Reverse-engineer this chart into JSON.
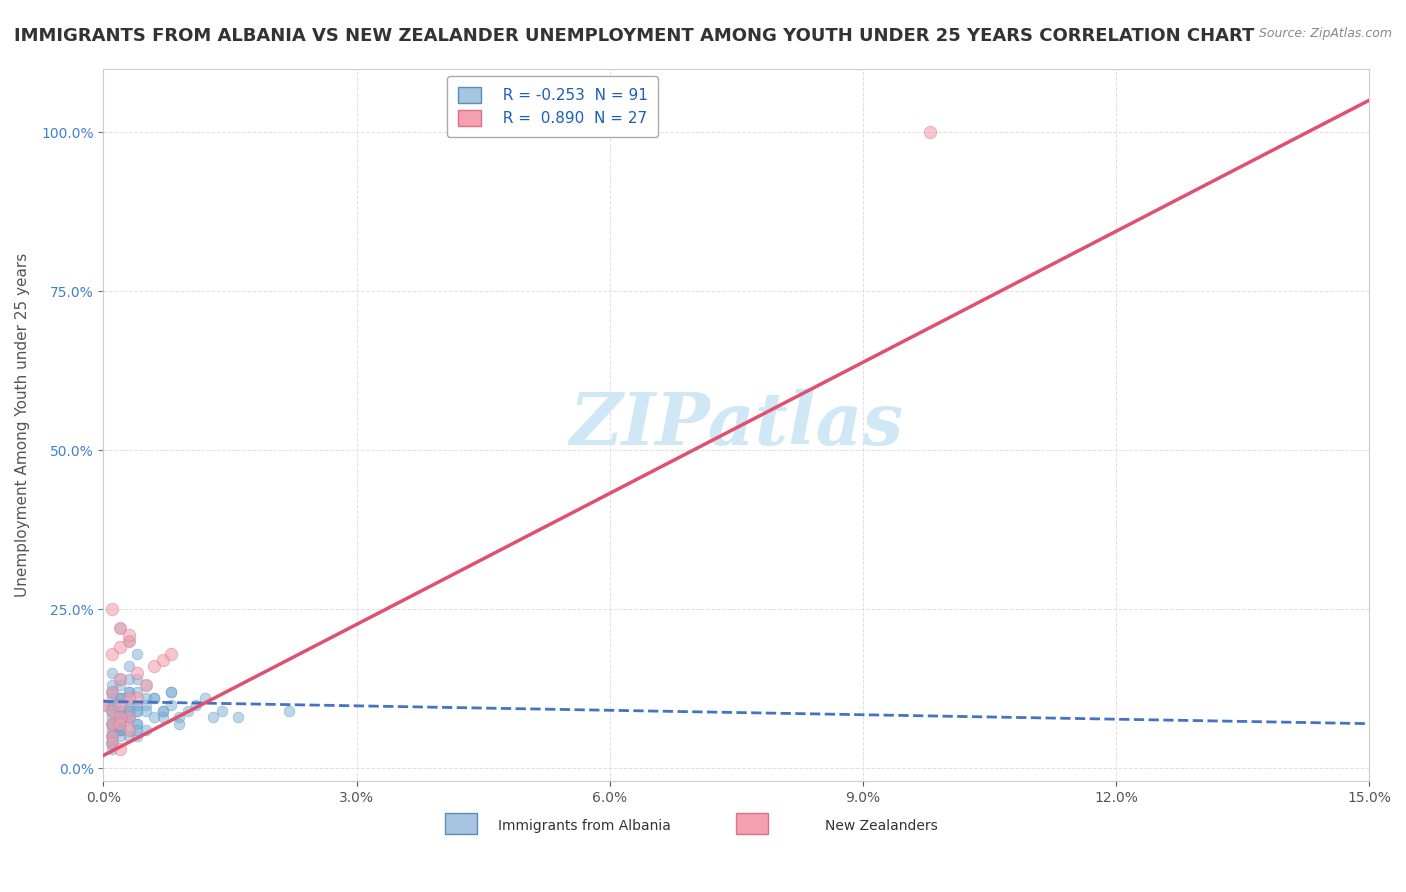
{
  "title": "IMMIGRANTS FROM ALBANIA VS NEW ZEALANDER UNEMPLOYMENT AMONG YOUTH UNDER 25 YEARS CORRELATION CHART",
  "source": "Source: ZipAtlas.com",
  "ylabel": "Unemployment Among Youth under 25 years",
  "xlim": [
    0.0,
    0.15
  ],
  "ylim": [
    -0.02,
    1.1
  ],
  "xticks": [
    0.0,
    0.03,
    0.06,
    0.09,
    0.12,
    0.15
  ],
  "xtick_labels": [
    "0.0%",
    "3.0%",
    "6.0%",
    "9.0%",
    "12.0%",
    "15.0%"
  ],
  "yticks": [
    0.0,
    0.25,
    0.5,
    0.75,
    1.0
  ],
  "ytick_labels": [
    "0.0%",
    "25.0%",
    "50.0%",
    "75.0%",
    "100.0%"
  ],
  "legend_entries": [
    {
      "label": "Immigrants from Albania",
      "R": "-0.253",
      "N": "91",
      "color": "#a8c4e0",
      "edge_color": "#5590bb"
    },
    {
      "label": "New Zealanders",
      "R": "0.890",
      "N": "27",
      "color": "#f4a0b0",
      "edge_color": "#e07088"
    }
  ],
  "blue_scatter_x": [
    0.0,
    0.001,
    0.002,
    0.003,
    0.004,
    0.005,
    0.006,
    0.007,
    0.008,
    0.009,
    0.001,
    0.002,
    0.003,
    0.004,
    0.005,
    0.001,
    0.002,
    0.003,
    0.001,
    0.002,
    0.003,
    0.004,
    0.005,
    0.006,
    0.007,
    0.008,
    0.009,
    0.01,
    0.011,
    0.012,
    0.013,
    0.014,
    0.002,
    0.003,
    0.004,
    0.003,
    0.004,
    0.005,
    0.001,
    0.002,
    0.001,
    0.002,
    0.003,
    0.004,
    0.002,
    0.003,
    0.001,
    0.002,
    0.003,
    0.001,
    0.001,
    0.002,
    0.003,
    0.004,
    0.005,
    0.006,
    0.007,
    0.008,
    0.016,
    0.022,
    0.001,
    0.002,
    0.001,
    0.002,
    0.003,
    0.002,
    0.001,
    0.003,
    0.004,
    0.002,
    0.001,
    0.002,
    0.001,
    0.002,
    0.003,
    0.002,
    0.003,
    0.004,
    0.001,
    0.002,
    0.001,
    0.002,
    0.003,
    0.004,
    0.001,
    0.002,
    0.001,
    0.002,
    0.001,
    0.001,
    0.001
  ],
  "blue_scatter_y": [
    0.1,
    0.12,
    0.08,
    0.11,
    0.09,
    0.1,
    0.11,
    0.09,
    0.12,
    0.08,
    0.15,
    0.13,
    0.14,
    0.12,
    0.11,
    0.09,
    0.08,
    0.1,
    0.07,
    0.11,
    0.12,
    0.1,
    0.09,
    0.11,
    0.08,
    0.12,
    0.07,
    0.09,
    0.1,
    0.11,
    0.08,
    0.09,
    0.22,
    0.2,
    0.18,
    0.16,
    0.14,
    0.13,
    0.12,
    0.11,
    0.1,
    0.09,
    0.08,
    0.07,
    0.06,
    0.05,
    0.04,
    0.07,
    0.08,
    0.09,
    0.06,
    0.07,
    0.08,
    0.07,
    0.06,
    0.08,
    0.09,
    0.1,
    0.08,
    0.09,
    0.13,
    0.14,
    0.11,
    0.1,
    0.09,
    0.08,
    0.07,
    0.06,
    0.05,
    0.06,
    0.08,
    0.09,
    0.1,
    0.11,
    0.12,
    0.07,
    0.08,
    0.09,
    0.05,
    0.06,
    0.07,
    0.08,
    0.09,
    0.06,
    0.05,
    0.06,
    0.04,
    0.05,
    0.03,
    0.04,
    0.05
  ],
  "blue_scatter_color": "#7bafd4",
  "blue_scatter_edge": "#5590bb",
  "blue_scatter_size": 60,
  "blue_scatter_alpha": 0.5,
  "pink_scatter_x": [
    0.0,
    0.001,
    0.002,
    0.003,
    0.004,
    0.005,
    0.006,
    0.007,
    0.008,
    0.001,
    0.002,
    0.003,
    0.001,
    0.002,
    0.003,
    0.004,
    0.001,
    0.002,
    0.003,
    0.001,
    0.002,
    0.003,
    0.001,
    0.002,
    0.001,
    0.098,
    0.002
  ],
  "pink_scatter_y": [
    0.1,
    0.12,
    0.14,
    0.08,
    0.11,
    0.13,
    0.16,
    0.17,
    0.18,
    0.25,
    0.22,
    0.2,
    0.18,
    0.19,
    0.21,
    0.15,
    0.09,
    0.1,
    0.11,
    0.07,
    0.08,
    0.06,
    0.05,
    0.07,
    0.04,
    1.0,
    0.03
  ],
  "pink_scatter_color": "#f4a0b0",
  "pink_scatter_edge": "#e07088",
  "pink_scatter_size": 80,
  "pink_scatter_alpha": 0.6,
  "blue_trend_x": [
    0.0,
    0.15
  ],
  "blue_trend_y": [
    0.105,
    0.07
  ],
  "blue_trend_color": "#4472c4",
  "blue_trend_linewidth": 2.0,
  "blue_trend_linestyle": "--",
  "pink_trend_x": [
    0.0,
    0.15
  ],
  "pink_trend_y": [
    0.02,
    1.05
  ],
  "pink_trend_color": "#e05070",
  "pink_trend_linewidth": 2.5,
  "pink_trend_linestyle": "-",
  "watermark": "ZIPatlas",
  "watermark_color": "#d0e8f5",
  "background_color": "#ffffff",
  "grid_color": "#e0e0e0",
  "title_fontsize": 13,
  "axis_label_fontsize": 11,
  "tick_fontsize": 10,
  "legend_fontsize": 11,
  "r_color": "#1a5fba",
  "ytick_color": "#4080cc"
}
